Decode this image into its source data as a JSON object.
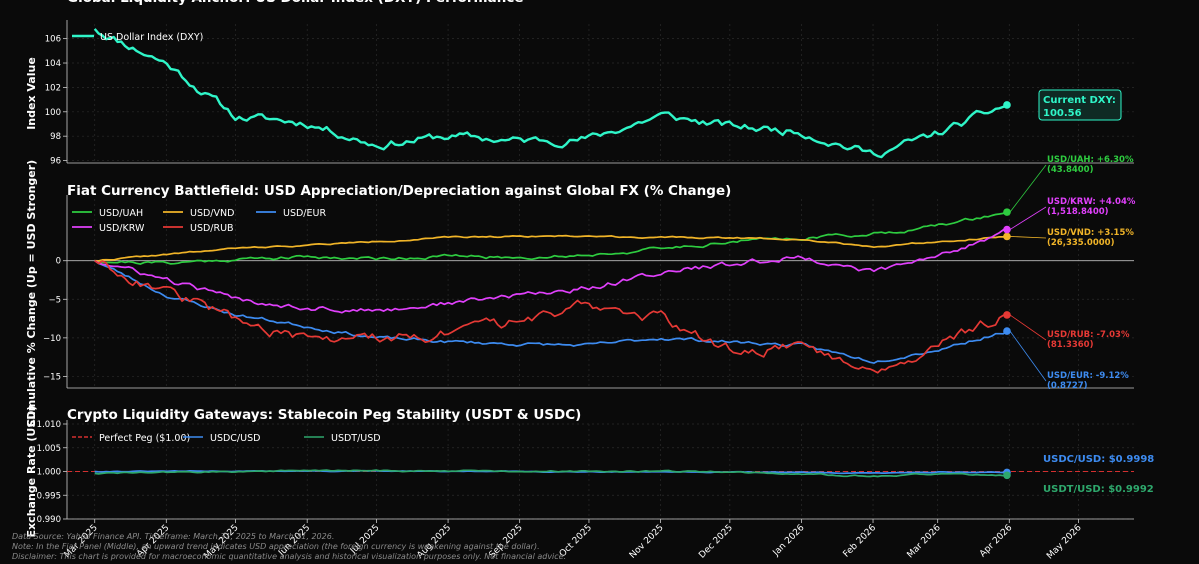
{
  "colors": {
    "background": "#0a0a0a",
    "grid": "#2a2a2a",
    "dxy": "#2ff5c8",
    "uah": "#2ecc40",
    "krw": "#e040fb",
    "vnd": "#f0b428",
    "rub": "#e53935",
    "eur": "#3d8bf0",
    "usdc": "#3d8bf0",
    "usdt": "#2ea86c",
    "peg": "#d32f2f"
  },
  "x_axis": {
    "ticks": [
      "Mar 2025",
      "Apr 2025",
      "May 2025",
      "Jun 2025",
      "Jul 2025",
      "Aug 2025",
      "Sep 2025",
      "Oct 2025",
      "Nov 2025",
      "Dec 2025",
      "Jan 2026",
      "Feb 2026",
      "Mar 2026",
      "Apr 2026",
      "May 2026"
    ]
  },
  "chart_data": [
    {
      "type": "line",
      "title": "Global Liquidity Anchor: US Dollar Index (DXY) Performance",
      "ylabel": "Index Value",
      "ylim": [
        95.8,
        107.2
      ],
      "yticks": [
        "96",
        "98",
        "100",
        "102",
        "104",
        "106"
      ],
      "legend": [
        "US Dollar Index (DXY)"
      ],
      "x": [
        "2025-03-01",
        "2025-04-01",
        "2025-05-01",
        "2025-06-01",
        "2025-07-01",
        "2025-08-01",
        "2025-09-01",
        "2025-10-01",
        "2025-11-01",
        "2025-12-01",
        "2026-01-01",
        "2026-02-01",
        "2026-03-01",
        "2026-03-31"
      ],
      "series": [
        {
          "name": "US Dollar Index (DXY)",
          "values": [
            106.8,
            104.0,
            99.6,
            99.1,
            97.3,
            98.0,
            97.6,
            97.8,
            99.7,
            98.8,
            98.4,
            96.5,
            98.2,
            100.56
          ]
        }
      ],
      "annotation": {
        "label": "Current DXY:",
        "value": "100.56"
      }
    },
    {
      "type": "line",
      "title": "Fiat Currency Battlefield: USD Appreciation/Depreciation against Global FX (% Change)",
      "ylabel": "Cumulative % Change (Up = USD Stronger)",
      "ylim": [
        -16.5,
        8.0
      ],
      "yticks": [
        "0",
        "−5",
        "−10",
        "−15"
      ],
      "legend": [
        "USD/UAH",
        "USD/VND",
        "USD/EUR",
        "USD/KRW",
        "USD/RUB"
      ],
      "x": [
        "2025-03-01",
        "2025-04-01",
        "2025-05-01",
        "2025-06-01",
        "2025-07-01",
        "2025-08-01",
        "2025-09-01",
        "2025-10-01",
        "2025-11-01",
        "2025-12-01",
        "2026-01-01",
        "2026-02-01",
        "2026-03-01",
        "2026-03-31"
      ],
      "series": [
        {
          "name": "USD/UAH",
          "values": [
            0.0,
            -0.3,
            0.2,
            0.5,
            0.3,
            0.6,
            0.4,
            0.8,
            1.5,
            2.5,
            3.0,
            3.5,
            4.5,
            6.3
          ]
        },
        {
          "name": "USD/VND",
          "values": [
            0.0,
            0.8,
            1.6,
            2.0,
            2.5,
            3.0,
            3.2,
            3.2,
            3.0,
            3.0,
            2.8,
            1.8,
            2.5,
            3.15
          ]
        },
        {
          "name": "USD/EUR",
          "values": [
            0.0,
            -4.5,
            -7.0,
            -8.5,
            -10.0,
            -10.5,
            -10.8,
            -11.0,
            -10.0,
            -10.5,
            -11.0,
            -13.0,
            -11.5,
            -9.12
          ]
        },
        {
          "name": "USD/KRW",
          "values": [
            0.0,
            -2.5,
            -5.0,
            -6.0,
            -6.5,
            -5.5,
            -4.5,
            -3.5,
            -1.5,
            -0.5,
            0.5,
            -1.5,
            0.5,
            4.04
          ]
        },
        {
          "name": "USD/RUB",
          "values": [
            0.0,
            -4.0,
            -7.5,
            -10.5,
            -10.0,
            -9.5,
            -8.0,
            -5.5,
            -7.5,
            -11.5,
            -11.0,
            -14.0,
            -11.0,
            -7.03
          ]
        }
      ],
      "end_labels": [
        {
          "series": "USD/UAH",
          "label": "USD/UAH: +6.30%",
          "value": "(43.8400)"
        },
        {
          "series": "USD/KRW",
          "label": "USD/KRW: +4.04%",
          "value": "(1,518.8400)"
        },
        {
          "series": "USD/VND",
          "label": "USD/VND: +3.15%",
          "value": "(26,335.0000)"
        },
        {
          "series": "USD/RUB",
          "label": "USD/RUB: -7.03%",
          "value": "(81.3360)"
        },
        {
          "series": "USD/EUR",
          "label": "USD/EUR: -9.12%",
          "value": "(0.8727)"
        }
      ]
    },
    {
      "type": "line",
      "title": "Crypto Liquidity Gateways: Stablecoin Peg Stability (USDT & USDC)",
      "ylabel": "Exchange Rate (USD)",
      "ylim": [
        0.99,
        1.01
      ],
      "yticks": [
        "0.990",
        "0.995",
        "1.000",
        "1.005",
        "1.010"
      ],
      "legend": [
        "Perfect Peg ($1.00)",
        "USDC/USD",
        "USDT/USD"
      ],
      "x": [
        "2025-03-01",
        "2025-06-01",
        "2025-09-01",
        "2025-12-01",
        "2026-01-01",
        "2026-02-01",
        "2026-03-01",
        "2026-03-31"
      ],
      "series": [
        {
          "name": "USDC/USD",
          "values": [
            1.0,
            1.0001,
            1.0,
            0.9999,
            0.9998,
            0.9996,
            0.9999,
            0.9998
          ]
        },
        {
          "name": "USDT/USD",
          "values": [
            0.9996,
            1.0002,
            1.0001,
            1.0,
            0.9994,
            0.999,
            0.9995,
            0.9992
          ]
        }
      ],
      "peg": 1.0,
      "end_labels": [
        {
          "series": "USDC/USD",
          "label": "USDC/USD: $0.9998"
        },
        {
          "series": "USDT/USD",
          "label": "USDT/USD: $0.9992"
        }
      ]
    }
  ],
  "footer": {
    "line1": "Data Source: Yahoo Finance API. Timeframe: March 31, 2025 to March 31, 2026.",
    "line2": "Note: In the Fiat Panel (Middle), an upward trend indicates USD appreciation (the foreign currency is weakening against the dollar).",
    "line3": "Disclaimer: This chart is provided for macroeconomic quantitative analysis and historical visualization purposes only. Not financial advice."
  }
}
